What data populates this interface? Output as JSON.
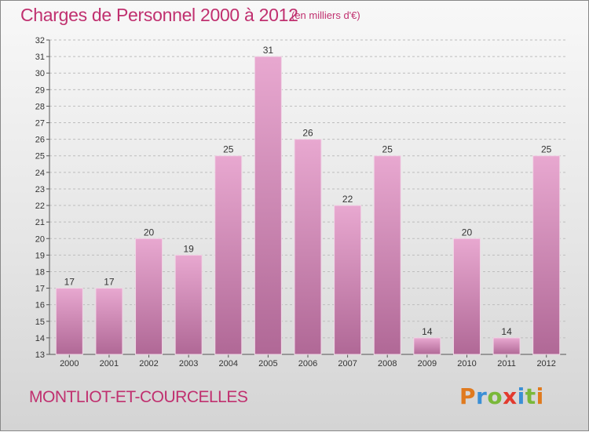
{
  "title": "Charges de Personnel 2000 à 2012",
  "subtitle": "(en milliers d'€)",
  "place_name": "MONTLIOT-ET-COURCELLES",
  "logo": {
    "text": "Proxiti",
    "letters": [
      {
        "ch": "P",
        "color": "#e07a1e"
      },
      {
        "ch": "r",
        "color": "#3a8fd6"
      },
      {
        "ch": "o",
        "color": "#7ab83a"
      },
      {
        "ch": "x",
        "color": "#e23a2e"
      },
      {
        "ch": "i",
        "color": "#3a8fd6"
      },
      {
        "ch": "t",
        "color": "#7ab83a"
      },
      {
        "ch": "i",
        "color": "#e07a1e"
      }
    ]
  },
  "colors": {
    "accent": "#c0306f",
    "bar_top": "#e8a8d0",
    "bar_bottom": "#b06896",
    "grid": "#bdbdbd",
    "axis_text": "#333333"
  },
  "chart_data": {
    "type": "bar",
    "title": "Charges de Personnel 2000 à 2012",
    "categories": [
      "2000",
      "2001",
      "2002",
      "2003",
      "2004",
      "2005",
      "2006",
      "2007",
      "2008",
      "2009",
      "2010",
      "2011",
      "2012"
    ],
    "values": [
      17,
      17,
      20,
      19,
      25,
      31,
      26,
      22,
      25,
      14,
      20,
      14,
      25
    ],
    "ylim": [
      13,
      32
    ],
    "yticks": [
      13,
      14,
      15,
      16,
      17,
      18,
      19,
      20,
      21,
      22,
      23,
      24,
      25,
      26,
      27,
      28,
      29,
      30,
      31,
      32
    ],
    "grid": true,
    "legend": "none"
  }
}
